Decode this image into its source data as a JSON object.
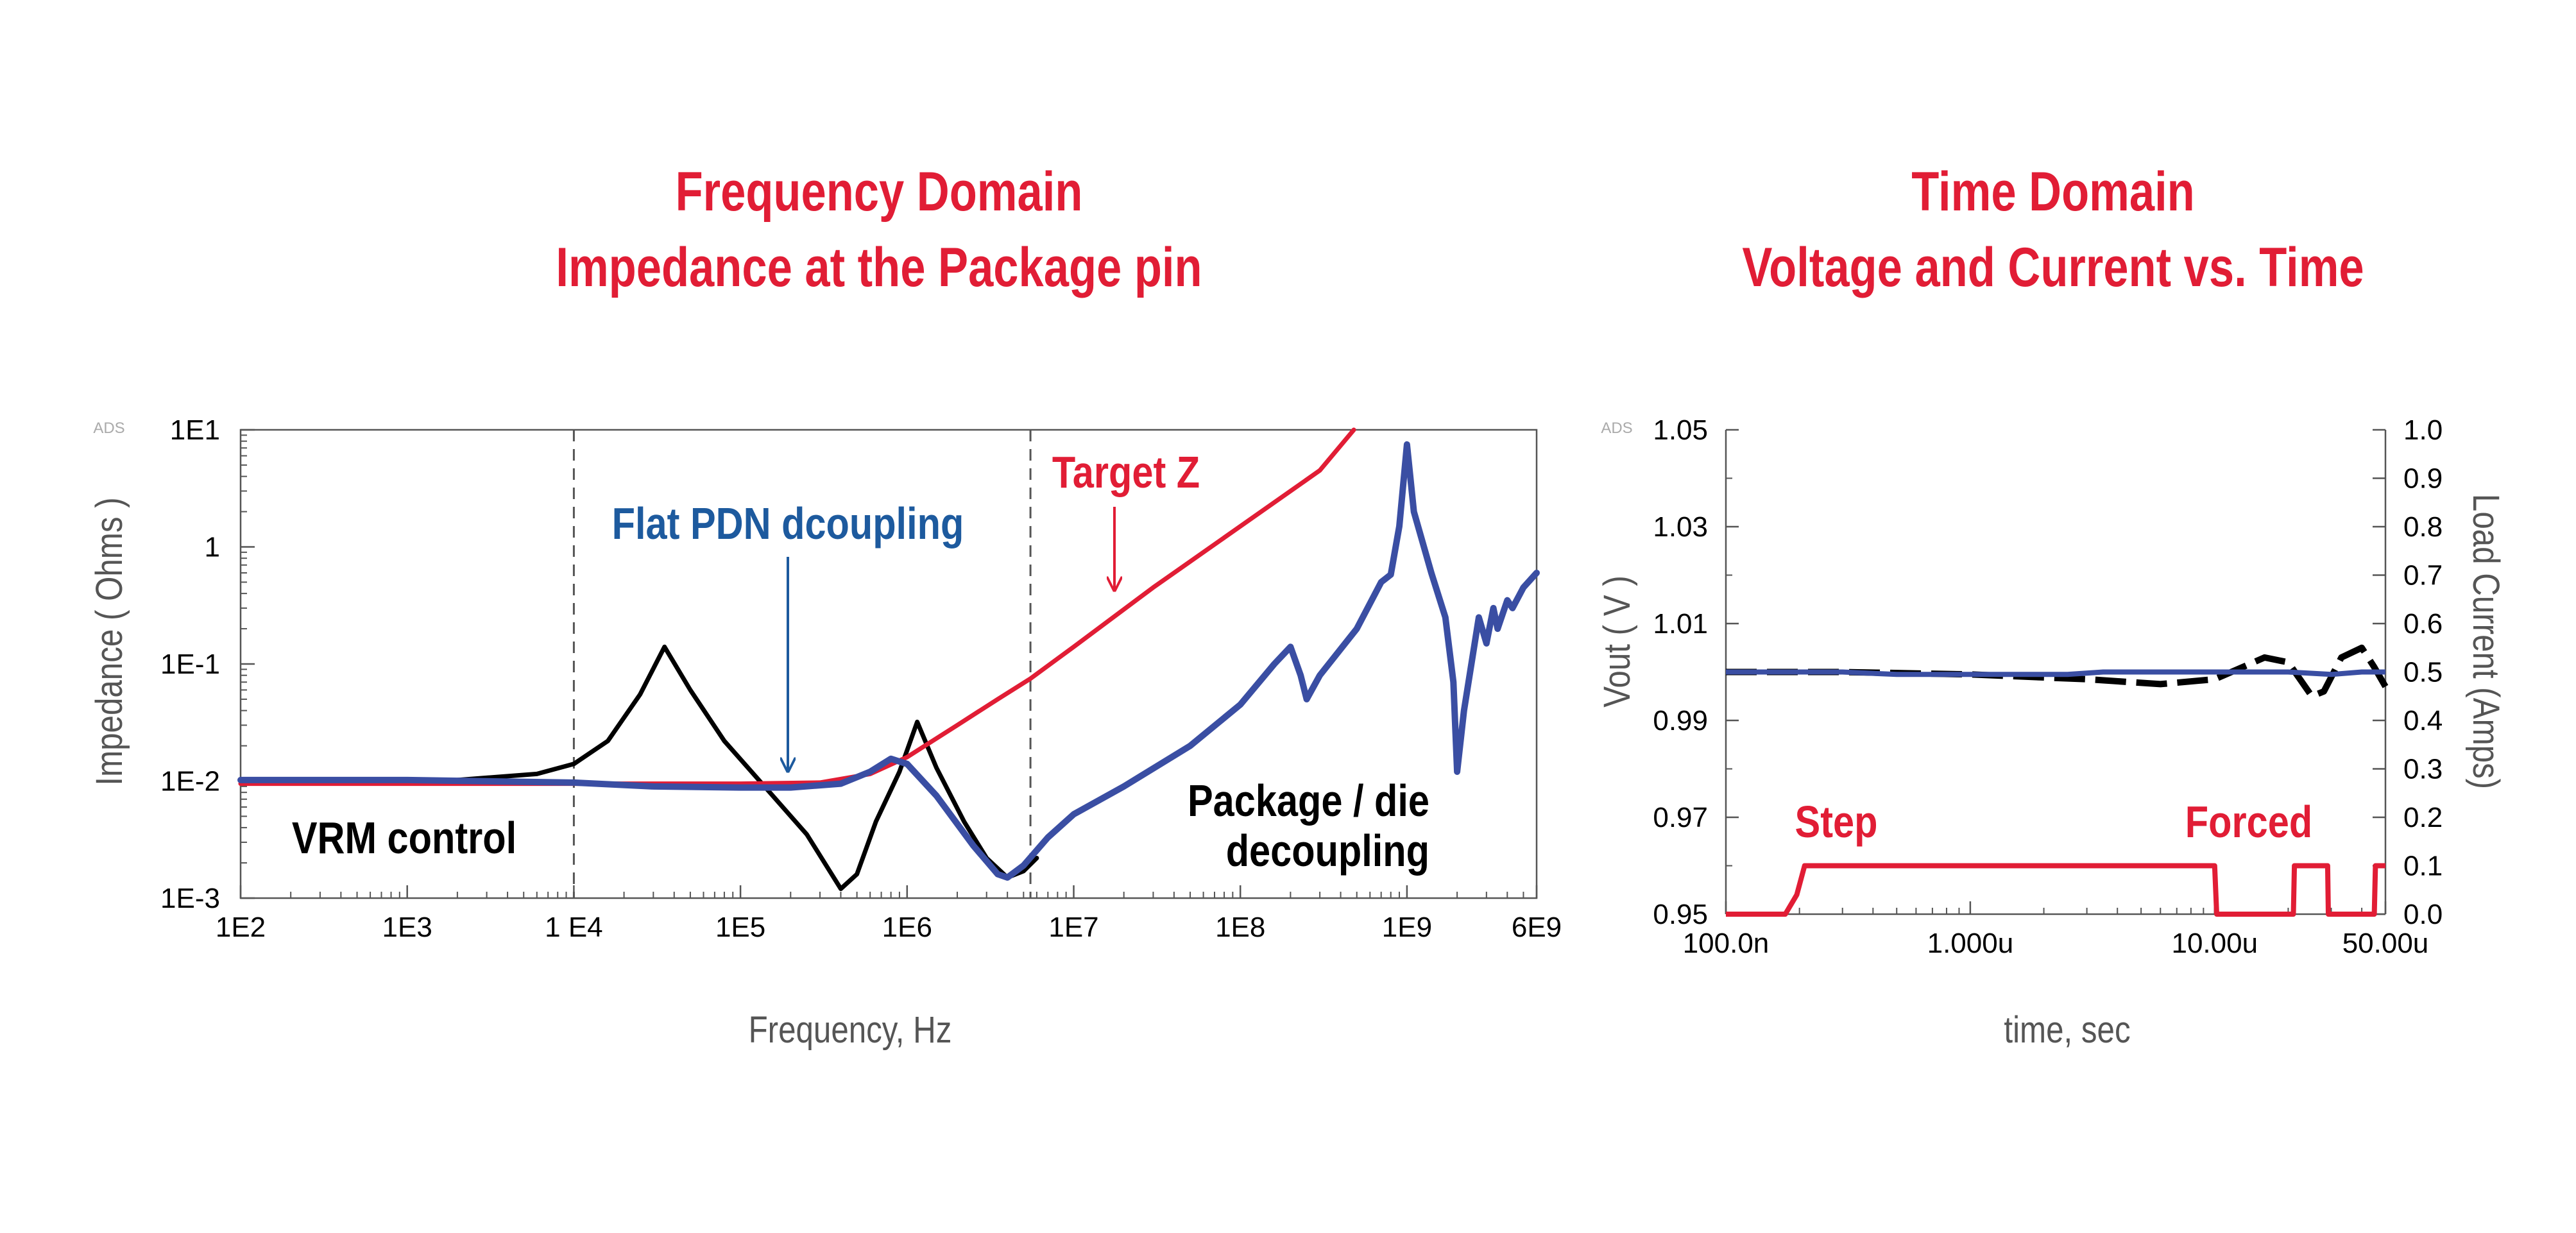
{
  "titles": {
    "frequency": {
      "line1": "Frequency Domain",
      "line2": "Impedance at the Package pin"
    },
    "time": {
      "line1": "Time Domain",
      "line2": "Voltage and Current vs. Time"
    }
  },
  "colors": {
    "accent_red": "#e11d35",
    "trace_blue": "#3a4ea3",
    "annotation_blue": "#1d5a9e",
    "trace_black": "#000000",
    "axis_gray": "#555555"
  },
  "chart_data": [
    {
      "type": "line",
      "watermark": "ADS",
      "xlabel": "Frequency, Hz",
      "ylabel": "Impedance ( Ohms )",
      "x_scale": "log",
      "y_scale": "log",
      "xlim": [
        100,
        6000000000
      ],
      "ylim": [
        0.001,
        10
      ],
      "x_ticks": [
        {
          "value": 100,
          "label": "1E2"
        },
        {
          "value": 1000,
          "label": "1E3"
        },
        {
          "value": 10000,
          "label": "1 E4"
        },
        {
          "value": 100000,
          "label": "1E5"
        },
        {
          "value": 1000000,
          "label": "1E6"
        },
        {
          "value": 10000000,
          "label": "1E7"
        },
        {
          "value": 100000000,
          "label": "1E8"
        },
        {
          "value": 1000000000,
          "label": "1E9"
        },
        {
          "value": 6000000000,
          "label": "6E9"
        }
      ],
      "y_ticks": [
        {
          "value": 10,
          "label": "1E1"
        },
        {
          "value": 1,
          "label": "1"
        },
        {
          "value": 0.1,
          "label": "1E-1"
        },
        {
          "value": 0.01,
          "label": "1E-2"
        },
        {
          "value": 0.001,
          "label": "1E-3"
        }
      ],
      "vlines": [
        10000,
        5500000
      ],
      "series": [
        {
          "name": "Target Z",
          "color": "#e11d35",
          "points": [
            [
              100,
              0.0095
            ],
            [
              10000,
              0.0095
            ],
            [
              100000,
              0.0095
            ],
            [
              300000,
              0.0097
            ],
            [
              600000,
              0.0115
            ],
            [
              1000000,
              0.016
            ],
            [
              2000000,
              0.03
            ],
            [
              3500000,
              0.05
            ],
            [
              5500000,
              0.075
            ],
            [
              10000000,
              0.14
            ],
            [
              30000000,
              0.45
            ],
            [
              100000000,
              1.5
            ],
            [
              300000000,
              4.5
            ],
            [
              480000000,
              10
            ]
          ]
        },
        {
          "name": "",
          "color": "#000000",
          "points": [
            [
              100,
              0.01
            ],
            [
              2000,
              0.0102
            ],
            [
              6000,
              0.0115
            ],
            [
              10000,
              0.014
            ],
            [
              16000,
              0.022
            ],
            [
              25000,
              0.055
            ],
            [
              35000,
              0.14
            ],
            [
              50000,
              0.06
            ],
            [
              80000,
              0.022
            ],
            [
              150000,
              0.008
            ],
            [
              250000,
              0.0035
            ],
            [
              400000,
              0.0012
            ],
            [
              500000,
              0.0016
            ],
            [
              650000,
              0.0045
            ],
            [
              900000,
              0.012
            ],
            [
              1150000,
              0.032
            ],
            [
              1500000,
              0.013
            ],
            [
              2200000,
              0.0045
            ],
            [
              3000000,
              0.0022
            ],
            [
              4000000,
              0.0015
            ],
            [
              5000000,
              0.0017
            ],
            [
              6000000,
              0.0022
            ]
          ]
        },
        {
          "name": "",
          "color": "#3a4ea3",
          "points": [
            [
              100,
              0.0102
            ],
            [
              1000,
              0.0102
            ],
            [
              10000,
              0.0097
            ],
            [
              30000,
              0.009
            ],
            [
              100000,
              0.0088
            ],
            [
              200000,
              0.0088
            ],
            [
              400000,
              0.0095
            ],
            [
              600000,
              0.012
            ],
            [
              800000,
              0.0155
            ],
            [
              1000000,
              0.014
            ],
            [
              1500000,
              0.0075
            ],
            [
              2500000,
              0.0028
            ],
            [
              3500000,
              0.0016
            ],
            [
              4000000,
              0.0015
            ],
            [
              5000000,
              0.0019
            ],
            [
              7000000,
              0.0033
            ],
            [
              10000000,
              0.0052
            ],
            [
              20000000,
              0.009
            ],
            [
              50000000,
              0.02
            ],
            [
              100000000,
              0.045
            ],
            [
              160000000,
              0.1
            ],
            [
              200000000,
              0.14
            ],
            [
              230000000,
              0.08
            ],
            [
              250000000,
              0.05
            ],
            [
              300000000,
              0.08
            ],
            [
              500000000,
              0.2
            ],
            [
              700000000,
              0.5
            ],
            [
              800000000,
              0.58
            ],
            [
              900000000,
              1.5
            ],
            [
              1000000000,
              7.5
            ],
            [
              1100000000,
              2.0
            ],
            [
              1400000000,
              0.6
            ],
            [
              1700000000,
              0.25
            ],
            [
              1900000000,
              0.07
            ],
            [
              2000000000,
              0.012
            ],
            [
              2200000000,
              0.04
            ],
            [
              2700000000,
              0.25
            ],
            [
              3000000000,
              0.15
            ],
            [
              3300000000,
              0.3
            ],
            [
              3500000000,
              0.2
            ],
            [
              4000000000,
              0.35
            ],
            [
              4300000000,
              0.3
            ],
            [
              5000000000,
              0.45
            ],
            [
              6000000000,
              0.6
            ]
          ]
        }
      ],
      "annotations": [
        {
          "text": "Target Z",
          "color": "#e11d35",
          "arrow_to": [
            18000000,
            0.3
          ]
        },
        {
          "text": "Flat PDN dcoupling",
          "color": "#1d5a9e",
          "arrow_to": [
            200000,
            0.0088
          ]
        },
        {
          "text": "VRM control",
          "color": "#000000"
        },
        {
          "text": "Package / die",
          "color": "#000000"
        },
        {
          "text": "decoupling",
          "color": "#000000"
        }
      ]
    },
    {
      "type": "line",
      "watermark": "ADS",
      "xlabel": "time, sec",
      "ylabel": "Vout ( V )",
      "ylabel_right": "Load Current (Amps)",
      "x_scale": "log",
      "xlim": [
        1e-07,
        5e-05
      ],
      "ylim": [
        0.95,
        1.05
      ],
      "ylim_right": [
        0,
        1
      ],
      "x_ticks": [
        {
          "value": 1e-07,
          "label": "100.0n"
        },
        {
          "value": 1e-06,
          "label": "1.000u"
        },
        {
          "value": 1e-05,
          "label": "10.00u"
        },
        {
          "value": 5e-05,
          "label": "50.00u"
        }
      ],
      "y_ticks": [
        {
          "value": 1.05,
          "label": "1.05"
        },
        {
          "value": 1.03,
          "label": "1.03"
        },
        {
          "value": 1.01,
          "label": "1.01"
        },
        {
          "value": 0.99,
          "label": "0.99"
        },
        {
          "value": 0.97,
          "label": "0.97"
        },
        {
          "value": 0.95,
          "label": "0.95"
        }
      ],
      "y_ticks_right": [
        {
          "value": 1.0,
          "label": "1.0"
        },
        {
          "value": 0.9,
          "label": "0.9"
        },
        {
          "value": 0.8,
          "label": "0.8"
        },
        {
          "value": 0.7,
          "label": "0.7"
        },
        {
          "value": 0.6,
          "label": "0.6"
        },
        {
          "value": 0.5,
          "label": "0.5"
        },
        {
          "value": 0.4,
          "label": "0.4"
        },
        {
          "value": 0.3,
          "label": "0.3"
        },
        {
          "value": 0.2,
          "label": "0.2"
        },
        {
          "value": 0.1,
          "label": "0.1"
        },
        {
          "value": 0.0,
          "label": "0.0"
        }
      ],
      "series": [
        {
          "name": "",
          "color": "#000000",
          "dashed": true,
          "axis": "left",
          "points": [
            [
              1e-07,
              1.0
            ],
            [
              3e-07,
              1.0
            ],
            [
              1e-06,
              0.9995
            ],
            [
              3e-06,
              0.9985
            ],
            [
              6e-06,
              0.9975
            ],
            [
              1e-05,
              0.9985
            ],
            [
              1.3e-05,
              1.001
            ],
            [
              1.6e-05,
              1.003
            ],
            [
              2e-05,
              1.002
            ],
            [
              2.5e-05,
              0.995
            ],
            [
              2.8e-05,
              0.996
            ],
            [
              3.3e-05,
              1.003
            ],
            [
              4e-05,
              1.005
            ],
            [
              4.5e-05,
              1.001
            ],
            [
              5e-05,
              0.997
            ]
          ]
        },
        {
          "name": "",
          "color": "#3a4ea3",
          "axis": "left",
          "points": [
            [
              1e-07,
              1.0
            ],
            [
              3e-07,
              1.0
            ],
            [
              5e-07,
              0.9995
            ],
            [
              1e-06,
              0.9995
            ],
            [
              2.5e-06,
              0.9995
            ],
            [
              3.5e-06,
              1.0
            ],
            [
              5e-06,
              1.0
            ],
            [
              1e-05,
              1.0
            ],
            [
              2e-05,
              1.0
            ],
            [
              3e-05,
              0.9995
            ],
            [
              4e-05,
              1.0
            ],
            [
              5e-05,
              1.0
            ]
          ]
        },
        {
          "name": "",
          "color": "#e11d35",
          "axis": "right",
          "points": [
            [
              1e-07,
              0
            ],
            [
              1.75e-07,
              0
            ],
            [
              1.95e-07,
              0.04
            ],
            [
              2.1e-07,
              0.1
            ],
            [
              1e-05,
              0.1
            ],
            [
              1.02e-05,
              0
            ],
            [
              2.1e-05,
              0
            ],
            [
              2.12e-05,
              0.1
            ],
            [
              2.9e-05,
              0.1
            ],
            [
              2.92e-05,
              0
            ],
            [
              4.5e-05,
              0
            ],
            [
              4.55e-05,
              0.1
            ],
            [
              5e-05,
              0.1
            ]
          ]
        }
      ],
      "annotations": [
        {
          "text": "Step",
          "color": "#e11d35"
        },
        {
          "text": "Forced",
          "color": "#e11d35"
        }
      ]
    }
  ]
}
